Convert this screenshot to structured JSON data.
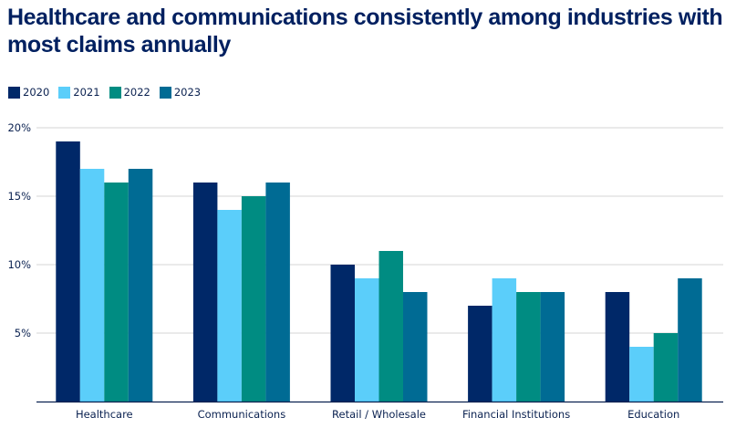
{
  "chart_data": {
    "type": "bar",
    "title": "Healthcare and communications consistently among industries with most claims annually",
    "xlabel": "",
    "ylabel": "",
    "ylim": [
      0,
      20
    ],
    "yticks": [
      5,
      10,
      15,
      20
    ],
    "ytick_labels": [
      "5%",
      "10%",
      "15%",
      "20%"
    ],
    "grid": true,
    "legend_position": "top-left",
    "categories": [
      "Healthcare",
      "Communications",
      "Retail / Wholesale",
      "Financial Institutions",
      "Education"
    ],
    "series": [
      {
        "name": "2020",
        "color": "#002868",
        "values": [
          19,
          16,
          10,
          7,
          8
        ]
      },
      {
        "name": "2021",
        "color": "#5BCEFA",
        "values": [
          17,
          14,
          9,
          9,
          4
        ]
      },
      {
        "name": "2022",
        "color": "#008C82",
        "values": [
          16,
          15,
          11,
          8,
          5
        ]
      },
      {
        "name": "2023",
        "color": "#006B94",
        "values": [
          17,
          16,
          8,
          8,
          9
        ]
      }
    ]
  }
}
